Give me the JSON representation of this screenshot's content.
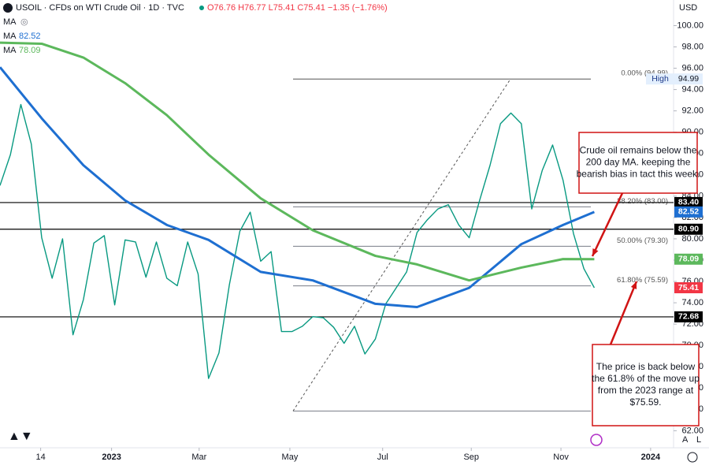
{
  "header": {
    "title": "USOIL · CFDs on WTI Crude Oil · 1D · TVC",
    "ohlc": "O76.76 H76.77 L75.41 C75.41 −1.35 (−1.76%)",
    "currency": "USD",
    "ma_label": "MA",
    "scale_buttons": [
      "A",
      "L"
    ]
  },
  "chart_data": {
    "type": "line",
    "xlim": [
      0,
      64.6
    ],
    "xticks": [
      {
        "value": 3.9,
        "label": "14"
      },
      {
        "value": 10.7,
        "label": "2023"
      },
      {
        "value": 19.1,
        "label": "Mar"
      },
      {
        "value": 27.8,
        "label": "May"
      },
      {
        "value": 36.7,
        "label": "Jul"
      },
      {
        "value": 45.2,
        "label": "Sep"
      },
      {
        "value": 53.8,
        "label": "Nov"
      },
      {
        "value": 62.4,
        "label": "2024"
      }
    ],
    "ylim": [
      60.4,
      102.4
    ],
    "yticks": [
      {
        "value": 62,
        "label": "62.00"
      },
      {
        "value": 64,
        "label": "64.00"
      },
      {
        "value": 66,
        "label": "66.00"
      },
      {
        "value": 68,
        "label": "68.00"
      },
      {
        "value": 70,
        "label": "70.00"
      },
      {
        "value": 72,
        "label": "72.00"
      },
      {
        "value": 74,
        "label": "74.00"
      },
      {
        "value": 76,
        "label": "76.00"
      },
      {
        "value": 78,
        "label": "78.00"
      },
      {
        "value": 80,
        "label": "80.00"
      },
      {
        "value": 82,
        "label": "82.00"
      },
      {
        "value": 84,
        "label": "84.00"
      },
      {
        "value": 86,
        "label": "86.00"
      },
      {
        "value": 88,
        "label": "88.00"
      },
      {
        "value": 90,
        "label": "90.00"
      },
      {
        "value": 92,
        "label": "92.00"
      },
      {
        "value": 94,
        "label": "94.00"
      },
      {
        "value": 96,
        "label": "96.00"
      },
      {
        "value": 98,
        "label": "98.00"
      },
      {
        "value": 100,
        "label": "100.00"
      }
    ],
    "series": [
      {
        "color": "#089981",
        "x": [
          0,
          1,
          2,
          3,
          4,
          5,
          6,
          7,
          8,
          9,
          10,
          11,
          12,
          13,
          14,
          15,
          16,
          17,
          18,
          19,
          20,
          21,
          22,
          23,
          24,
          25,
          26,
          27,
          28,
          29,
          30,
          31,
          32,
          33,
          34,
          35,
          36,
          37,
          38,
          39,
          40,
          41,
          42,
          43,
          44,
          45,
          46,
          47,
          48,
          49,
          50,
          51,
          52,
          53,
          54,
          55,
          56,
          57
        ],
        "values": [
          85.0,
          87.9,
          92.6,
          88.9,
          80.1,
          76.3,
          80.0,
          71.0,
          74.3,
          79.6,
          80.3,
          73.8,
          79.9,
          79.7,
          76.4,
          79.7,
          76.3,
          75.6,
          79.7,
          76.7,
          66.9,
          69.3,
          75.7,
          80.7,
          82.5,
          77.9,
          78.8,
          71.3,
          71.3,
          71.8,
          72.7,
          72.6,
          71.7,
          70.2,
          71.8,
          69.2,
          70.6,
          73.9,
          75.4,
          76.9,
          80.6,
          81.8,
          82.8,
          83.2,
          81.3,
          80.1,
          83.6,
          86.9,
          90.8,
          91.8,
          90.8,
          82.8,
          86.4,
          88.8,
          85.5,
          80.5,
          77.2,
          75.41
        ]
      },
      {
        "name": "MA",
        "color": "#1e6fd1",
        "x": [
          0,
          4,
          8,
          12,
          16,
          20,
          25,
          30,
          36,
          40,
          45,
          50,
          54,
          57
        ],
        "values": [
          96.1,
          91.3,
          86.9,
          83.6,
          81.3,
          79.9,
          76.9,
          76.1,
          73.9,
          73.6,
          75.4,
          79.5,
          81.3,
          82.52
        ]
      },
      {
        "name": "MA",
        "color": "#5cb85c",
        "x": [
          0,
          4,
          8,
          12,
          16,
          20,
          25,
          30,
          36,
          40,
          45,
          50,
          54,
          57
        ],
        "values": [
          98.4,
          98.3,
          97.0,
          94.6,
          91.6,
          87.9,
          83.8,
          80.8,
          78.4,
          77.6,
          76.1,
          77.3,
          78.1,
          78.09
        ]
      }
    ],
    "levels": {
      "values": [
        83.4,
        80.9,
        72.68
      ],
      "value_labels": [
        "83.40",
        "80.90",
        "72.68"
      ],
      "color": "#000000"
    },
    "fib": {
      "values": [
        94.99,
        83.0,
        79.3,
        75.59,
        63.85
      ],
      "labels": [
        "0.00% (94.99)",
        "38.20% (83.00)",
        "50.00% (79.30)",
        "61.80% (75.59)",
        null
      ],
      "high_label": "High",
      "color": "#787b86"
    },
    "last_price_color": "#f23645",
    "annotations": [
      {
        "lines": [
          "Crude oil remains below the",
          "200 day MA. keeping the",
          "bearish bias in tact this week."
        ]
      },
      {
        "lines": [
          "The price is back below",
          "the 61.8% of the move up",
          "from the 2023 range at",
          "$75.59."
        ]
      }
    ]
  }
}
